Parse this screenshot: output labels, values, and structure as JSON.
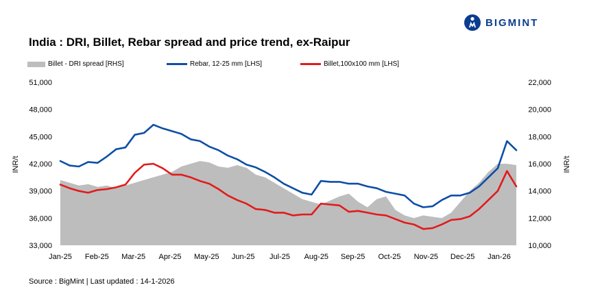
{
  "brand": {
    "name": "BIGMINT",
    "color": "#0a3d8f"
  },
  "title": "India : DRI, Billet, Rebar spread and price trend, ex-Raipur",
  "source": "Source : BigMint | Last updated : 14-1-2026",
  "chart_data": {
    "type": "line",
    "title": "India : DRI, Billet, Rebar spread and price trend, ex-Raipur",
    "ylabel_left": "INR/t",
    "ylabel_right": "INR/t",
    "ylim_left": [
      33000,
      51000
    ],
    "ylim_right": [
      10000,
      22000
    ],
    "yticks_left": [
      "51,000",
      "48,000",
      "45,000",
      "42,000",
      "39,000",
      "36,000",
      "33,000"
    ],
    "yticks_right": [
      "22,000",
      "20,000",
      "18,000",
      "16,000",
      "14,000",
      "12,000",
      "10,000"
    ],
    "xticks": [
      "Jan-25",
      "Feb-25",
      "Mar-25",
      "Apr-25",
      "May-25",
      "Jun-25",
      "Jul-25",
      "Aug-25",
      "Sep-25",
      "Oct-25",
      "Nov-25",
      "Dec-25",
      "Jan-26"
    ],
    "x_months": [
      0,
      0.25,
      0.5,
      0.75,
      1.0,
      1.25,
      1.5,
      1.75,
      2.0,
      2.25,
      2.5,
      2.75,
      3.0,
      3.25,
      3.5,
      3.75,
      4.0,
      4.25,
      4.5,
      4.75,
      5.0,
      5.25,
      5.5,
      5.75,
      6.0,
      6.25,
      6.5,
      6.75,
      7.0,
      7.25,
      7.5,
      7.75,
      8.0,
      8.25,
      8.5,
      8.75,
      9.0,
      9.25,
      9.5,
      9.75,
      10.0,
      10.25,
      10.5,
      10.75,
      11.0,
      11.25,
      11.5,
      11.75,
      12.0,
      12.25
    ],
    "legend_position": "top",
    "grid": false,
    "series": [
      {
        "name": "Billet - DRI spread [RHS]",
        "type": "area",
        "axis": "right",
        "color": "#bdbdbd",
        "values": [
          14800,
          14600,
          14400,
          14500,
          14300,
          14400,
          14200,
          14400,
          14600,
          14800,
          15000,
          15200,
          15400,
          15800,
          16000,
          16200,
          16100,
          15800,
          15700,
          15900,
          15700,
          15200,
          15000,
          14600,
          14200,
          13800,
          13400,
          13200,
          13000,
          13300,
          13600,
          13800,
          13200,
          12800,
          13400,
          13600,
          12600,
          12200,
          12000,
          12200,
          12100,
          12000,
          12400,
          13200,
          14000,
          14600,
          15400,
          16000,
          16000,
          15900
        ]
      },
      {
        "name": "Rebar, 12-25 mm [LHS]",
        "type": "line",
        "axis": "left",
        "color": "#0d4ea6",
        "values": [
          42300,
          41800,
          41700,
          42200,
          42100,
          42800,
          43600,
          43800,
          45200,
          45400,
          46300,
          45900,
          45600,
          45300,
          44700,
          44500,
          43900,
          43500,
          42900,
          42500,
          41900,
          41600,
          41100,
          40500,
          39800,
          39300,
          38800,
          38600,
          40100,
          40000,
          40000,
          39800,
          39800,
          39500,
          39300,
          38900,
          38700,
          38500,
          37600,
          37200,
          37300,
          38000,
          38500,
          38500,
          38800,
          39500,
          40500,
          41500,
          44500,
          43500
        ]
      },
      {
        "name": "Billet,100x100 mm [LHS]",
        "type": "line",
        "axis": "left",
        "color": "#e31a1a",
        "values": [
          39700,
          39300,
          39000,
          38800,
          39100,
          39200,
          39400,
          39700,
          41000,
          41900,
          42000,
          41500,
          40800,
          40800,
          40500,
          40100,
          39800,
          39200,
          38500,
          38000,
          37600,
          37000,
          36900,
          36600,
          36600,
          36300,
          36400,
          36400,
          37600,
          37500,
          37400,
          36700,
          36800,
          36600,
          36400,
          36300,
          35900,
          35500,
          35300,
          34800,
          34900,
          35300,
          35800,
          35900,
          36200,
          37000,
          38000,
          39000,
          41200,
          39500
        ]
      }
    ]
  }
}
